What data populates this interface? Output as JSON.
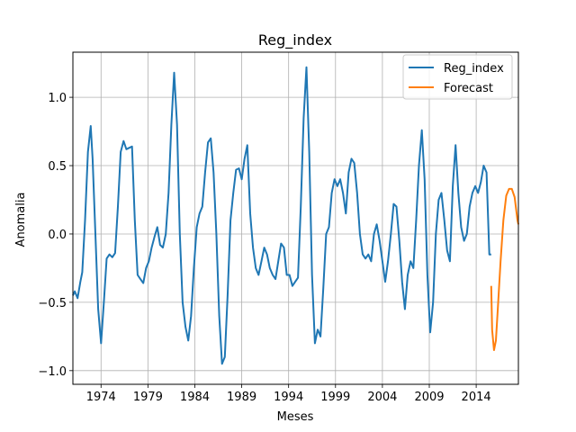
{
  "chart_data": {
    "type": "line",
    "title": "Reg_index",
    "xlabel": "Meses",
    "ylabel": "Anomalia",
    "xlim": [
      1971.0,
      2018.5
    ],
    "ylim": [
      -1.1,
      1.33
    ],
    "x_ticks": [
      1974,
      1979,
      1984,
      1989,
      1994,
      1999,
      2004,
      2009,
      2014
    ],
    "x_tick_labels": [
      "1974",
      "1979",
      "1984",
      "1989",
      "1994",
      "1999",
      "2004",
      "2009",
      "2014"
    ],
    "y_ticks": [
      -1.0,
      -0.5,
      0.0,
      0.5,
      1.0
    ],
    "y_tick_labels": [
      "−1.0",
      "−0.5",
      "0.0",
      "0.5",
      "1.0"
    ],
    "grid": true,
    "legend_position": "top-right",
    "series": [
      {
        "name": "Reg_index",
        "color": "#1f77b4",
        "x": [
          1971.0,
          1971.2,
          1971.5,
          1971.8,
          1972.0,
          1972.3,
          1972.6,
          1972.9,
          1973.1,
          1973.4,
          1973.7,
          1974.0,
          1974.3,
          1974.6,
          1974.9,
          1975.2,
          1975.5,
          1975.8,
          1976.1,
          1976.4,
          1976.7,
          1977.0,
          1977.3,
          1977.6,
          1977.9,
          1978.2,
          1978.5,
          1978.8,
          1979.1,
          1979.4,
          1979.7,
          1980.0,
          1980.3,
          1980.6,
          1980.9,
          1981.2,
          1981.5,
          1981.8,
          1982.1,
          1982.4,
          1982.7,
          1983.0,
          1983.3,
          1983.6,
          1983.9,
          1984.2,
          1984.5,
          1984.8,
          1985.1,
          1985.4,
          1985.7,
          1986.0,
          1986.3,
          1986.6,
          1986.9,
          1987.2,
          1987.5,
          1987.8,
          1988.1,
          1988.4,
          1988.7,
          1989.0,
          1989.3,
          1989.6,
          1989.9,
          1990.2,
          1990.5,
          1990.8,
          1991.1,
          1991.4,
          1991.7,
          1992.0,
          1992.3,
          1992.6,
          1992.9,
          1993.2,
          1993.5,
          1993.8,
          1994.1,
          1994.4,
          1994.7,
          1995.0,
          1995.3,
          1995.6,
          1995.9,
          1996.2,
          1996.5,
          1996.8,
          1997.1,
          1997.4,
          1997.7,
          1998.0,
          1998.3,
          1998.6,
          1998.9,
          1999.2,
          1999.5,
          1999.8,
          2000.1,
          2000.4,
          2000.7,
          2001.0,
          2001.3,
          2001.6,
          2001.9,
          2002.2,
          2002.5,
          2002.8,
          2003.1,
          2003.4,
          2003.7,
          2004.0,
          2004.3,
          2004.6,
          2004.9,
          2005.2,
          2005.5,
          2005.8,
          2006.1,
          2006.4,
          2006.7,
          2007.0,
          2007.3,
          2007.6,
          2007.9,
          2008.2,
          2008.5,
          2008.8,
          2009.1,
          2009.4,
          2009.7,
          2010.0,
          2010.3,
          2010.6,
          2010.9,
          2011.2,
          2011.5,
          2011.8,
          2012.1,
          2012.4,
          2012.7,
          2013.0,
          2013.3,
          2013.6,
          2013.9,
          2014.2,
          2014.5,
          2014.8,
          2015.1,
          2015.4,
          2015.6
        ],
        "y": [
          -0.45,
          -0.42,
          -0.47,
          -0.35,
          -0.28,
          0.1,
          0.6,
          0.79,
          0.55,
          0.0,
          -0.55,
          -0.8,
          -0.5,
          -0.18,
          -0.15,
          -0.17,
          -0.14,
          0.2,
          0.6,
          0.68,
          0.62,
          0.63,
          0.64,
          0.1,
          -0.3,
          -0.33,
          -0.36,
          -0.25,
          -0.2,
          -0.1,
          -0.02,
          0.05,
          -0.08,
          -0.1,
          0.0,
          0.3,
          0.8,
          1.18,
          0.8,
          0.0,
          -0.5,
          -0.68,
          -0.78,
          -0.6,
          -0.25,
          0.05,
          0.15,
          0.2,
          0.45,
          0.67,
          0.7,
          0.45,
          0.0,
          -0.6,
          -0.95,
          -0.9,
          -0.45,
          0.1,
          0.3,
          0.47,
          0.48,
          0.4,
          0.55,
          0.65,
          0.15,
          -0.1,
          -0.25,
          -0.3,
          -0.2,
          -0.1,
          -0.15,
          -0.25,
          -0.3,
          -0.33,
          -0.2,
          -0.07,
          -0.1,
          -0.3,
          -0.3,
          -0.38,
          -0.35,
          -0.32,
          0.2,
          0.85,
          1.22,
          0.6,
          -0.3,
          -0.8,
          -0.7,
          -0.75,
          -0.4,
          0.0,
          0.05,
          0.3,
          0.4,
          0.35,
          0.4,
          0.3,
          0.15,
          0.45,
          0.55,
          0.52,
          0.3,
          0.0,
          -0.15,
          -0.18,
          -0.15,
          -0.2,
          0.0,
          0.07,
          -0.05,
          -0.2,
          -0.35,
          -0.2,
          0.0,
          0.22,
          0.2,
          -0.05,
          -0.35,
          -0.55,
          -0.3,
          -0.2,
          -0.25,
          0.1,
          0.5,
          0.76,
          0.4,
          -0.3,
          -0.72,
          -0.5,
          0.0,
          0.25,
          0.3,
          0.1,
          -0.12,
          -0.2,
          0.35,
          0.65,
          0.3,
          0.05,
          -0.05,
          0.0,
          0.2,
          0.3,
          0.35,
          0.3,
          0.38,
          0.5,
          0.45,
          -0.15,
          -0.15
        ]
      },
      {
        "name": "Forecast",
        "color": "#ff7f0e",
        "x": [
          2015.6,
          2015.7,
          2015.9,
          2016.1,
          2016.3,
          2016.6,
          2016.9,
          2017.2,
          2017.5,
          2017.8,
          2018.1,
          2018.4,
          2018.5
        ],
        "y": [
          -0.38,
          -0.7,
          -0.85,
          -0.78,
          -0.55,
          -0.2,
          0.1,
          0.28,
          0.33,
          0.33,
          0.27,
          0.1,
          0.07
        ]
      }
    ]
  }
}
